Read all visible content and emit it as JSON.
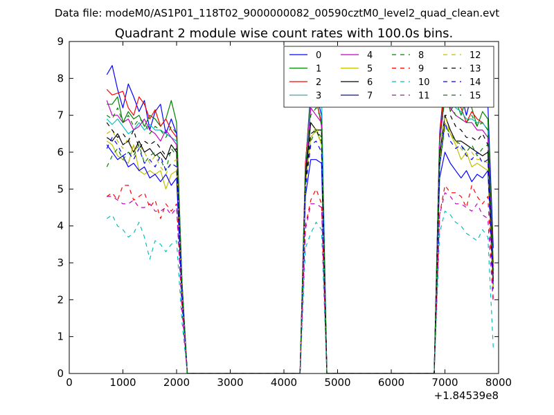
{
  "figure": {
    "suptitle": "Data file: modeM0/AS1P01_118T02_9000000082_00590cztM0_level2_quad_clean.evt"
  },
  "chart_data": {
    "type": "line",
    "title": "Quadrant 2 module wise count rates with 100.0s bins.",
    "xlabel": "",
    "ylabel": "",
    "x_offset_label": "+1.84539e8",
    "xlim": [
      0,
      8000
    ],
    "ylim": [
      0,
      9
    ],
    "x_ticks": [
      0,
      1000,
      2000,
      3000,
      4000,
      5000,
      6000,
      7000,
      8000
    ],
    "y_ticks": [
      0,
      1,
      2,
      3,
      4,
      5,
      6,
      7,
      8,
      9
    ],
    "legend_position": "top-right",
    "legend_columns": 4,
    "x": [
      700,
      800,
      900,
      1000,
      1100,
      1200,
      1300,
      1400,
      1500,
      1600,
      1700,
      1800,
      1900,
      2000,
      2100,
      2200,
      2300,
      4300,
      4400,
      4500,
      4600,
      4700,
      4800,
      4900,
      6800,
      6900,
      7000,
      7100,
      7200,
      7300,
      7400,
      7500,
      7600,
      7700,
      7800,
      7900
    ],
    "series": [
      {
        "name": "0",
        "color": "#0000ff",
        "dash": "solid",
        "values": [
          8.1,
          8.35,
          7.7,
          7.2,
          7.85,
          7.5,
          7.1,
          7.4,
          6.6,
          7.1,
          7.3,
          6.5,
          6.9,
          6.5,
          2.5,
          0,
          0,
          0,
          5.6,
          7.7,
          7.6,
          7.0,
          0,
          0,
          0,
          6.5,
          8.0,
          7.6,
          7.3,
          7.6,
          7.0,
          7.6,
          7.4,
          7.4,
          7.3,
          3.4
        ]
      },
      {
        "name": "1",
        "color": "#008000",
        "dash": "solid",
        "values": [
          7.3,
          7.3,
          7.5,
          6.8,
          7.1,
          6.9,
          7.0,
          6.7,
          7.0,
          6.9,
          6.7,
          6.9,
          7.4,
          6.8,
          2.5,
          0,
          0,
          0,
          5.6,
          7.6,
          7.5,
          6.7,
          0,
          0,
          0,
          6.4,
          7.8,
          7.1,
          7.4,
          7.0,
          7.5,
          7.2,
          6.7,
          7.1,
          6.9,
          3.0
        ]
      },
      {
        "name": "2",
        "color": "#ff0000",
        "dash": "solid",
        "values": [
          7.7,
          7.55,
          7.6,
          7.65,
          7.2,
          7.0,
          7.5,
          7.3,
          6.9,
          7.15,
          6.7,
          6.9,
          6.6,
          6.4,
          2.4,
          0,
          0,
          0,
          5.7,
          7.4,
          7.4,
          6.8,
          0,
          0,
          0,
          6.4,
          8.0,
          7.7,
          7.3,
          7.2,
          6.8,
          7.1,
          6.9,
          6.8,
          6.6,
          2.9
        ]
      },
      {
        "name": "3",
        "color": "#00bfbf",
        "dash": "solid",
        "values": [
          6.9,
          6.75,
          6.9,
          6.7,
          6.5,
          6.6,
          6.8,
          6.6,
          6.75,
          6.6,
          6.6,
          6.5,
          6.4,
          6.3,
          2.4,
          0,
          0,
          0,
          5.5,
          7.4,
          7.3,
          7.6,
          0,
          0,
          0,
          6.3,
          7.5,
          7.5,
          7.2,
          7.1,
          6.9,
          6.9,
          6.8,
          6.8,
          6.6,
          2.7
        ]
      },
      {
        "name": "4",
        "color": "#bf00bf",
        "dash": "solid",
        "values": [
          7.4,
          7.0,
          7.0,
          6.8,
          6.9,
          6.6,
          6.7,
          6.9,
          6.6,
          6.5,
          6.3,
          6.6,
          6.4,
          6.2,
          2.3,
          0,
          0,
          0,
          5.4,
          7.2,
          7.0,
          6.8,
          0,
          0,
          0,
          6.2,
          7.6,
          7.2,
          7.0,
          6.9,
          6.8,
          6.8,
          6.6,
          6.6,
          6.4,
          2.7
        ]
      },
      {
        "name": "5",
        "color": "#bfbf00",
        "dash": "solid",
        "values": [
          6.3,
          6.2,
          5.9,
          5.8,
          5.7,
          6.2,
          5.5,
          5.4,
          5.5,
          5.4,
          5.5,
          5.0,
          5.4,
          5.5,
          2.1,
          0,
          0,
          0,
          5.1,
          6.4,
          6.6,
          6.2,
          0,
          0,
          0,
          5.8,
          6.8,
          6.5,
          6.2,
          5.8,
          6.0,
          5.6,
          5.7,
          5.6,
          5.5,
          2.4
        ]
      },
      {
        "name": "6",
        "color": "#000000",
        "dash": "solid",
        "values": [
          6.4,
          6.3,
          6.5,
          6.2,
          6.3,
          6.0,
          6.3,
          6.0,
          6.1,
          5.9,
          6.0,
          5.8,
          6.2,
          6.0,
          2.2,
          0,
          0,
          0,
          5.3,
          6.8,
          6.6,
          6.6,
          0,
          0,
          0,
          5.9,
          7.0,
          6.6,
          6.3,
          6.3,
          6.2,
          6.1,
          6.0,
          5.9,
          6.0,
          2.5
        ]
      },
      {
        "name": "7",
        "color": "#0000ff",
        "dash": "solid",
        "values": [
          6.2,
          6.0,
          5.8,
          5.9,
          5.6,
          5.7,
          5.5,
          5.6,
          5.3,
          5.4,
          5.2,
          5.4,
          5.1,
          5.3,
          2.0,
          0,
          0,
          0,
          4.8,
          5.8,
          5.8,
          5.7,
          0,
          0,
          0,
          5.3,
          6.0,
          5.7,
          5.5,
          5.3,
          5.5,
          5.2,
          5.4,
          5.3,
          5.5,
          2.3
        ]
      },
      {
        "name": "8",
        "color": "#008000",
        "dash": "dashed",
        "values": [
          5.6,
          5.9,
          6.1,
          5.8,
          6.0,
          5.9,
          6.2,
          5.7,
          5.9,
          6.0,
          5.8,
          5.5,
          6.1,
          5.9,
          2.2,
          0,
          0,
          0,
          5.1,
          6.3,
          6.6,
          6.4,
          0,
          0,
          0,
          5.6,
          6.7,
          6.5,
          6.3,
          6.2,
          6.0,
          6.2,
          5.9,
          6.1,
          6.2,
          2.4
        ]
      },
      {
        "name": "9",
        "color": "#ff0000",
        "dash": "dashed",
        "values": [
          4.8,
          4.9,
          4.7,
          5.1,
          5.1,
          4.7,
          4.8,
          4.9,
          4.5,
          4.7,
          4.2,
          4.6,
          4.4,
          4.6,
          1.8,
          0,
          0,
          0,
          4.0,
          4.7,
          5.0,
          4.6,
          0,
          0,
          0,
          4.3,
          5.1,
          4.9,
          4.9,
          4.8,
          4.5,
          5.1,
          4.8,
          4.6,
          4.8,
          2.0
        ]
      },
      {
        "name": "10",
        "color": "#00bfbf",
        "dash": "dashed",
        "values": [
          4.2,
          4.3,
          4.0,
          3.9,
          3.7,
          3.8,
          4.1,
          3.7,
          3.1,
          3.6,
          3.5,
          3.3,
          3.5,
          3.6,
          1.4,
          0,
          0,
          0,
          3.4,
          3.8,
          4.1,
          3.9,
          0,
          0,
          0,
          3.8,
          4.4,
          4.3,
          4.1,
          4.0,
          3.8,
          3.7,
          3.6,
          3.9,
          3.7,
          0.7
        ]
      },
      {
        "name": "11",
        "color": "#bf00bf",
        "dash": "dashed",
        "values": [
          4.8,
          4.8,
          4.7,
          4.6,
          4.6,
          4.7,
          4.5,
          4.5,
          4.6,
          4.4,
          4.4,
          4.5,
          4.3,
          4.5,
          1.7,
          0,
          0,
          0,
          3.9,
          4.6,
          4.6,
          4.5,
          0,
          0,
          0,
          4.3,
          4.9,
          4.8,
          4.6,
          4.6,
          4.5,
          4.4,
          4.6,
          4.3,
          4.2,
          1.9
        ]
      },
      {
        "name": "12",
        "color": "#bfbf00",
        "dash": "dashed",
        "values": [
          6.5,
          6.6,
          6.3,
          6.1,
          6.4,
          6.0,
          6.2,
          6.0,
          5.7,
          5.9,
          5.6,
          5.4,
          5.7,
          5.8,
          2.1,
          0,
          0,
          0,
          5.1,
          6.4,
          6.7,
          6.2,
          0,
          0,
          0,
          5.7,
          7.0,
          6.5,
          6.3,
          6.1,
          5.9,
          6.0,
          5.8,
          5.8,
          5.7,
          2.3
        ]
      },
      {
        "name": "13",
        "color": "#000000",
        "dash": "dashed",
        "values": [
          6.8,
          6.6,
          6.4,
          6.5,
          6.3,
          6.6,
          6.1,
          6.3,
          6.2,
          6.3,
          6.1,
          5.9,
          6.0,
          6.1,
          2.3,
          0,
          0,
          0,
          5.2,
          6.5,
          6.6,
          6.3,
          0,
          0,
          0,
          5.9,
          7.0,
          7.0,
          6.7,
          6.6,
          6.4,
          6.4,
          6.3,
          6.5,
          6.2,
          2.5
        ]
      },
      {
        "name": "14",
        "color": "#0000ff",
        "dash": "dashed",
        "values": [
          6.1,
          6.4,
          6.2,
          5.9,
          6.0,
          5.8,
          6.1,
          5.7,
          5.8,
          5.6,
          5.9,
          5.5,
          5.7,
          5.6,
          2.1,
          0,
          0,
          0,
          5.0,
          6.2,
          6.3,
          6.0,
          0,
          0,
          0,
          5.6,
          6.8,
          6.3,
          6.1,
          6.2,
          5.9,
          5.8,
          6.0,
          5.7,
          5.8,
          2.3
        ]
      },
      {
        "name": "15",
        "color": "#008000",
        "dash": "dashed",
        "values": [
          7.0,
          6.9,
          7.2,
          6.8,
          7.0,
          6.7,
          6.9,
          6.8,
          6.5,
          6.7,
          6.6,
          6.4,
          6.7,
          6.5,
          2.4,
          0,
          0,
          0,
          5.5,
          7.0,
          7.2,
          6.9,
          0,
          0,
          0,
          6.2,
          7.5,
          7.3,
          7.0,
          6.9,
          6.8,
          7.0,
          6.7,
          6.8,
          6.6,
          2.8
        ]
      }
    ]
  }
}
